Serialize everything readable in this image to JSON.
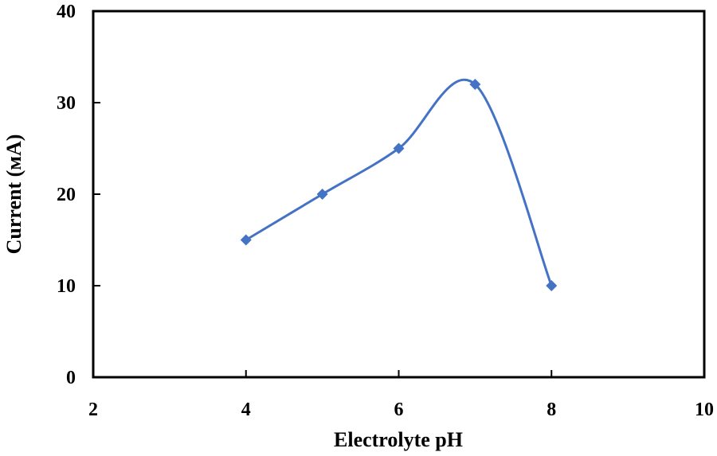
{
  "chart_data": {
    "type": "line",
    "title": "",
    "xlabel": "Electrolyte pH",
    "ylabel": "Current (мA)",
    "xlim": [
      2,
      10
    ],
    "ylim": [
      0,
      40
    ],
    "xticks": [
      2,
      4,
      6,
      8,
      10
    ],
    "yticks": [
      0,
      10,
      20,
      30,
      40
    ],
    "grid": false,
    "smoothed": true,
    "series": [
      {
        "x": [
          4,
          5,
          6,
          7,
          8
        ],
        "y": [
          15,
          20,
          25,
          32,
          10
        ],
        "color": "#4472C4",
        "marker": "diamond"
      }
    ]
  }
}
